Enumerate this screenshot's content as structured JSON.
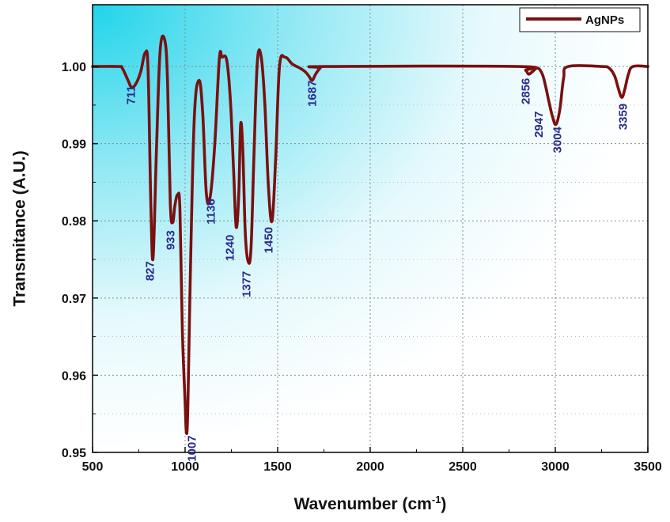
{
  "chart_data": {
    "type": "line",
    "xlabel": "Wavenumber",
    "xlabel_unit": "(cm",
    "xlabel_unit_sup": "-1",
    "xlabel_unit_close": ")",
    "ylabel": "Transmitance (A.U.)",
    "xlim": [
      500,
      3500
    ],
    "ylim": [
      0.95,
      1.008
    ],
    "x_ticks": [
      "500",
      "1000",
      "1500",
      "2000",
      "2500",
      "3000",
      "3500"
    ],
    "y_ticks": [
      "0.95",
      "0.96",
      "0.97",
      "0.98",
      "0.99",
      "1.00"
    ],
    "grid": true,
    "legend_position": "top-right",
    "series": [
      {
        "name": "AgNPs",
        "color": "#7a1010",
        "x": [
          500,
          640,
          660,
          690,
          711,
          735,
          760,
          785,
          800,
          815,
          827,
          845,
          865,
          890,
          905,
          920,
          933,
          945,
          960,
          972,
          985,
          1000,
          1007,
          1015,
          1030,
          1050,
          1075,
          1095,
          1115,
          1136,
          1160,
          1185,
          1200,
          1225,
          1245,
          1262,
          1276,
          1290,
          1300,
          1312,
          1325,
          1340,
          1356,
          1372,
          1390,
          1410,
          1430,
          1450,
          1470,
          1490,
          1510,
          1540,
          1580,
          1620,
          1650,
          1670,
          1687,
          1705,
          1730,
          1760,
          2800,
          2840,
          2856,
          2875,
          2905,
          2930,
          2947,
          2965,
          2985,
          3004,
          3025,
          3045,
          3070,
          3250,
          3290,
          3320,
          3340,
          3359,
          3375,
          3395,
          3420,
          3500
        ],
        "y": [
          1.0,
          1.0,
          0.9998,
          0.9983,
          0.9973,
          0.9978,
          0.9993,
          1.0018,
          0.9995,
          0.982,
          0.9752,
          0.989,
          1.002,
          1.0034,
          0.9982,
          0.9823,
          0.9798,
          0.982,
          0.9834,
          0.9815,
          0.966,
          0.9565,
          0.9525,
          0.956,
          0.975,
          0.9935,
          0.9982,
          0.994,
          0.9835,
          0.9832,
          0.9898,
          1.001,
          1.0012,
          1.0008,
          0.9955,
          0.9865,
          0.9792,
          0.9835,
          0.9925,
          0.989,
          0.9785,
          0.9748,
          0.9764,
          0.9885,
          1.0005,
          1.0014,
          0.9955,
          0.9845,
          0.98,
          0.9885,
          1.0,
          1.0012,
          1.0003,
          0.9998,
          0.9993,
          0.9987,
          0.9982,
          0.999,
          0.9998,
          1.0,
          1.0,
          0.9995,
          0.999,
          0.9993,
          0.9998,
          0.999,
          0.9975,
          0.9955,
          0.9935,
          0.9925,
          0.9945,
          0.9985,
          1.0,
          1.0,
          0.9998,
          0.9988,
          0.9972,
          0.996,
          0.997,
          0.999,
          1.0,
          1.0
        ]
      }
    ],
    "annotations": [
      {
        "text": "711",
        "x": 711,
        "y": 0.9963,
        "rotation": -90
      },
      {
        "text": "827",
        "x": 815,
        "y": 0.9735,
        "rotation": -90
      },
      {
        "text": "933",
        "x": 925,
        "y": 0.9775,
        "rotation": -90
      },
      {
        "text": "1007",
        "x": 1040,
        "y": 0.9505,
        "rotation": -90
      },
      {
        "text": "1136",
        "x": 1143,
        "y": 0.9812,
        "rotation": -90
      },
      {
        "text": "1240",
        "x": 1245,
        "y": 0.9765,
        "rotation": -90
      },
      {
        "text": "1377",
        "x": 1335,
        "y": 0.9718,
        "rotation": -90
      },
      {
        "text": "1450",
        "x": 1455,
        "y": 0.9775,
        "rotation": -90
      },
      {
        "text": "1687",
        "x": 1690,
        "y": 0.9965,
        "rotation": -90
      },
      {
        "text": "2856",
        "x": 2845,
        "y": 0.9968,
        "rotation": -90
      },
      {
        "text": "2947",
        "x": 2915,
        "y": 0.9925,
        "rotation": -90
      },
      {
        "text": "3004",
        "x": 3015,
        "y": 0.9905,
        "rotation": -90
      },
      {
        "text": "3359",
        "x": 3370,
        "y": 0.9935,
        "rotation": -90
      }
    ]
  }
}
